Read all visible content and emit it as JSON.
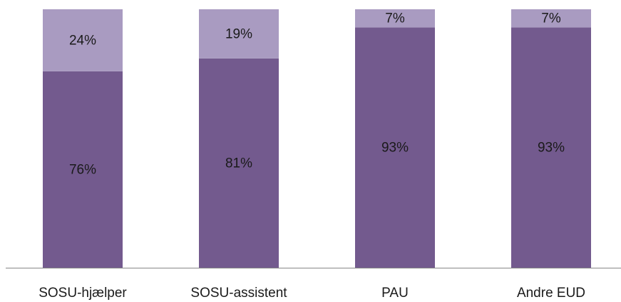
{
  "chart_data": {
    "type": "stacked_bar",
    "categories": [
      "SOSU-hjælper",
      "SOSU-assistent",
      "PAU",
      "Andre EUD"
    ],
    "series": [
      {
        "color": "#735a8e",
        "values": [
          76,
          81,
          93,
          93
        ],
        "value_labels": [
          "76%",
          "81%",
          "93%",
          "93%"
        ]
      },
      {
        "color": "#a99bc1",
        "values": [
          24,
          19,
          7,
          7
        ],
        "value_labels": [
          "24%",
          "19%",
          "7%",
          "7%"
        ]
      }
    ],
    "ylim": [
      0,
      100
    ]
  }
}
